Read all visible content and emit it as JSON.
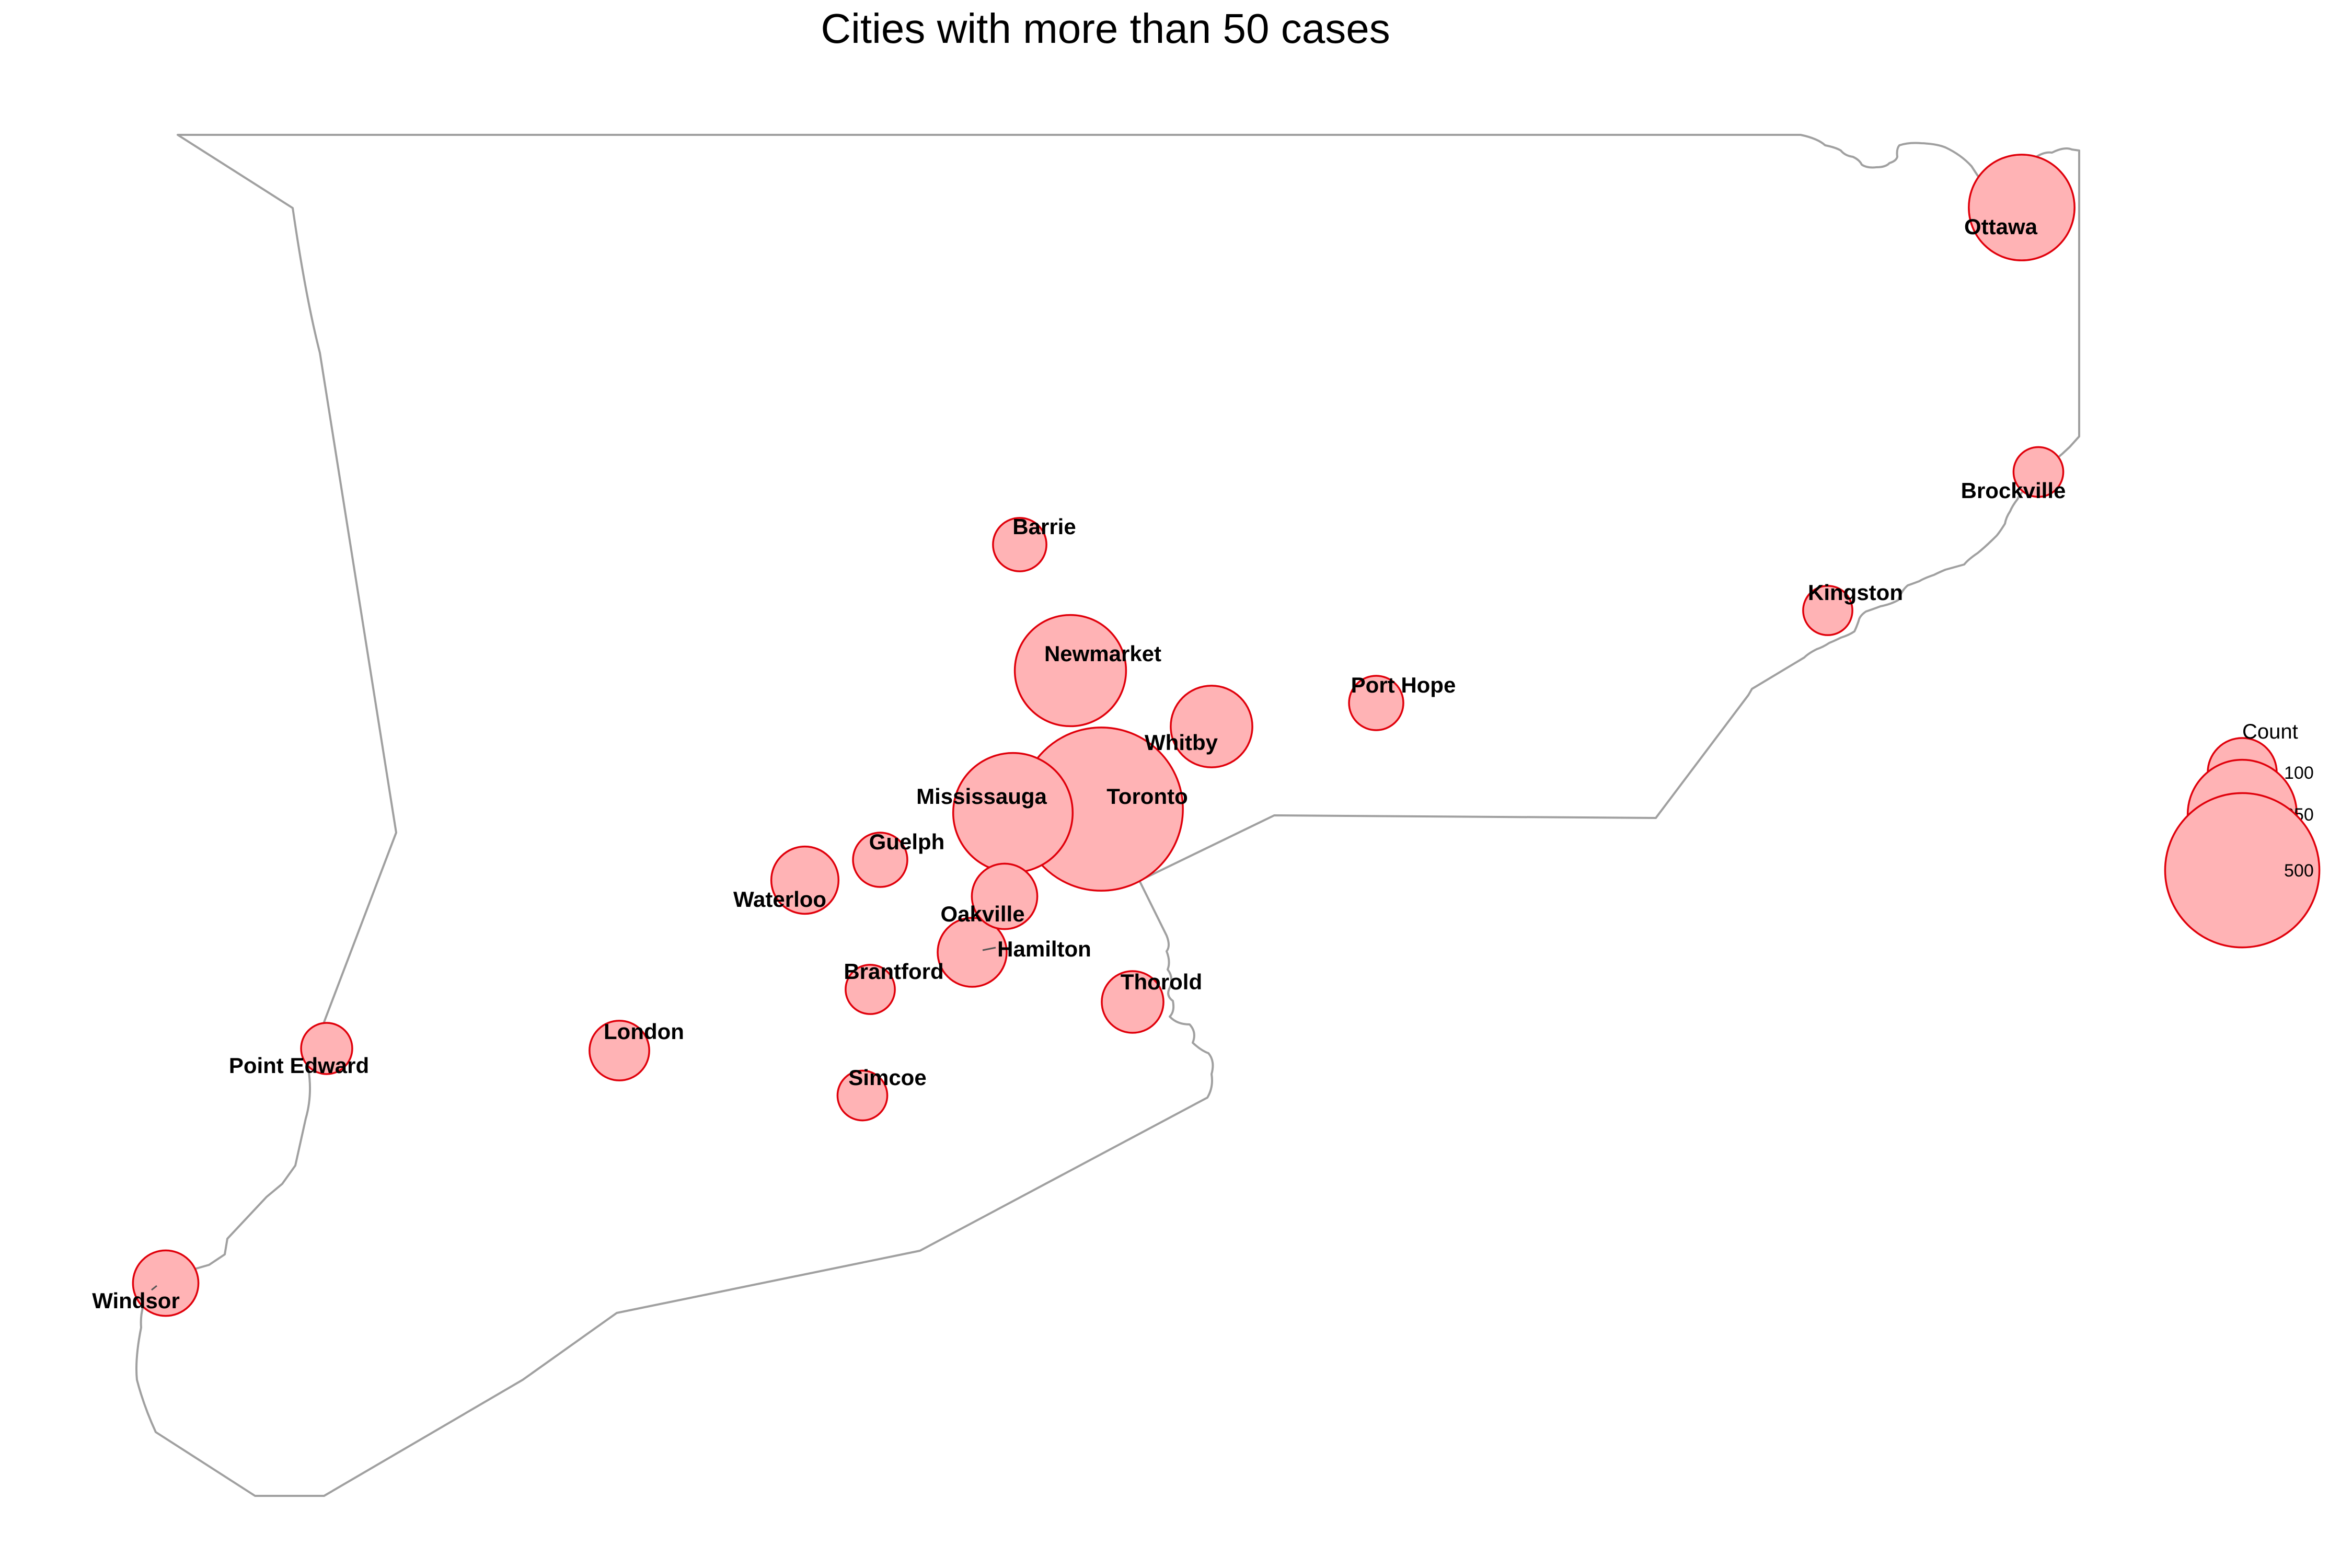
{
  "map": {
    "title": "Cities with more than 50 cases",
    "colors": {
      "fill": "#ffb3b5",
      "stroke": "#e0000b",
      "outline": "#a0a0a0"
    },
    "legend": {
      "title": "Count",
      "entries": [
        {
          "label": "100",
          "value": 100
        },
        {
          "label": "250",
          "value": 250
        },
        {
          "label": "500",
          "value": 500
        }
      ]
    },
    "cities": [
      {
        "name": "Toronto",
        "count": 560
      },
      {
        "name": "Mississauga",
        "count": 300
      },
      {
        "name": "Newmarket",
        "count": 260
      },
      {
        "name": "Ottawa",
        "count": 235
      },
      {
        "name": "Whitby",
        "count": 140
      },
      {
        "name": "Hamilton",
        "count": 100
      },
      {
        "name": "Waterloo",
        "count": 95
      },
      {
        "name": "Windsor",
        "count": 90
      },
      {
        "name": "Oakville",
        "count": 90
      },
      {
        "name": "Thorold",
        "count": 80
      },
      {
        "name": "London",
        "count": 75
      },
      {
        "name": "Guelph",
        "count": 62
      },
      {
        "name": "Port Hope",
        "count": 62
      },
      {
        "name": "Barrie",
        "count": 60
      },
      {
        "name": "Point Edward",
        "count": 55
      },
      {
        "name": "Simcoe",
        "count": 52
      },
      {
        "name": "Brockville",
        "count": 52
      },
      {
        "name": "Kingston",
        "count": 51
      },
      {
        "name": "Brantford",
        "count": 51
      }
    ]
  }
}
